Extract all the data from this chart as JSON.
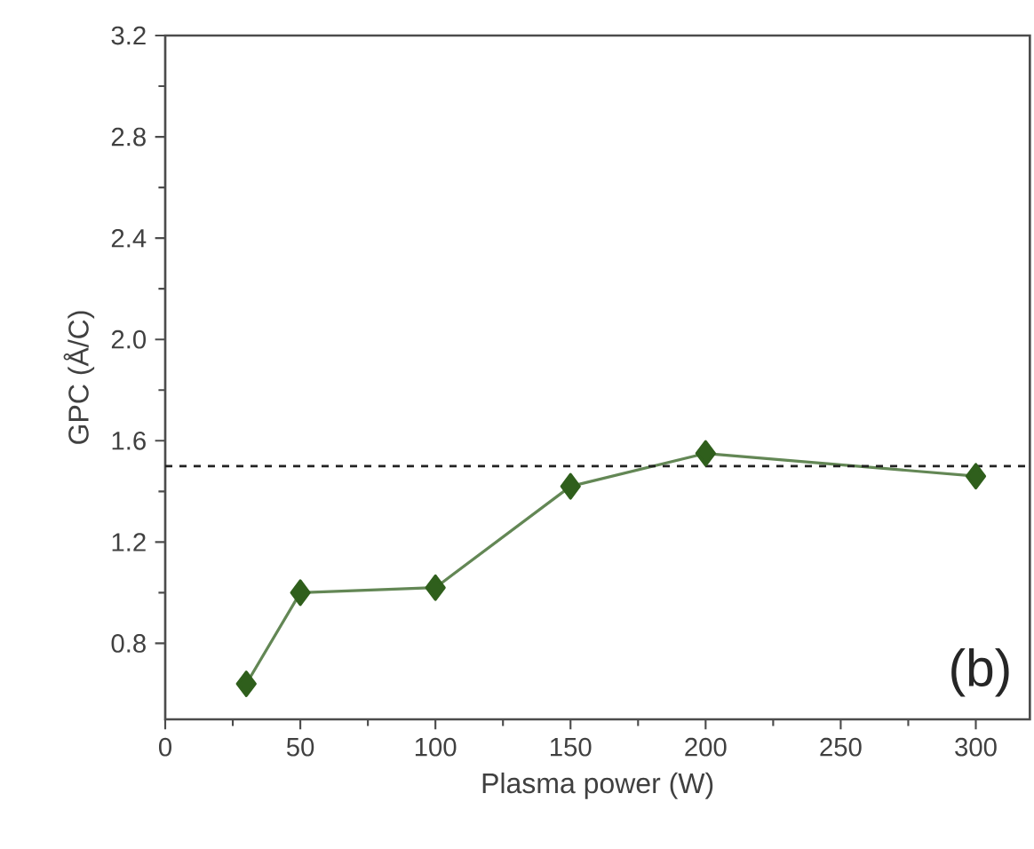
{
  "chart_data": {
    "type": "line",
    "xlabel": "Plasma power (W)",
    "ylabel": "GPC (Å/C)",
    "x": [
      30,
      50,
      100,
      150,
      200,
      300
    ],
    "series": [
      {
        "color": "#2f5f1c",
        "values": [
          0.64,
          1.0,
          1.02,
          1.42,
          1.55,
          1.46
        ]
      }
    ],
    "xlim": [
      0,
      320
    ],
    "ylim": [
      0.5,
      3.2
    ],
    "xticks": [
      0,
      50,
      100,
      150,
      200,
      250,
      300
    ],
    "yticks": [
      0.8,
      1.2,
      1.6,
      {
        "value": 2,
        "label": "2.0"
      },
      2.4,
      2.8,
      3.2
    ],
    "ref_lines": [
      {
        "axis": "y",
        "value": 1.5,
        "color": "#222222",
        "line_style": "dashed"
      }
    ],
    "annotations": [
      "(b)"
    ],
    "marker": "diamond",
    "line_style": "solid"
  }
}
